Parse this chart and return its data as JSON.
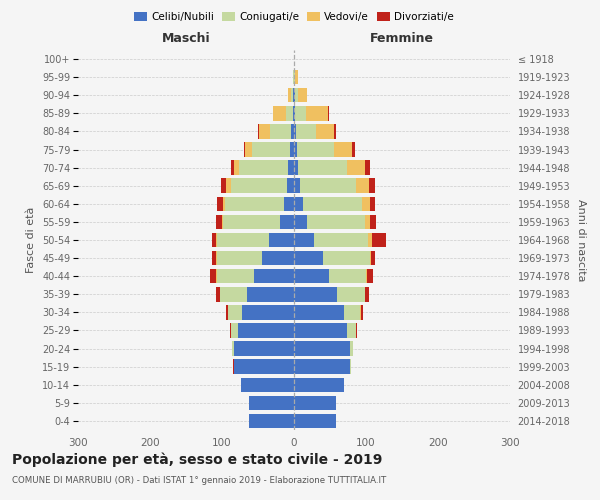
{
  "age_groups": [
    "0-4",
    "5-9",
    "10-14",
    "15-19",
    "20-24",
    "25-29",
    "30-34",
    "35-39",
    "40-44",
    "45-49",
    "50-54",
    "55-59",
    "60-64",
    "65-69",
    "70-74",
    "75-79",
    "80-84",
    "85-89",
    "90-94",
    "95-99",
    "100+"
  ],
  "birth_years": [
    "2014-2018",
    "2009-2013",
    "2004-2008",
    "1999-2003",
    "1994-1998",
    "1989-1993",
    "1984-1988",
    "1979-1983",
    "1974-1978",
    "1969-1973",
    "1964-1968",
    "1959-1963",
    "1954-1958",
    "1949-1953",
    "1944-1948",
    "1939-1943",
    "1934-1938",
    "1929-1933",
    "1924-1928",
    "1919-1923",
    "≤ 1918"
  ],
  "maschi": {
    "celibi": [
      63,
      62,
      73,
      83,
      83,
      78,
      72,
      65,
      55,
      45,
      35,
      20,
      14,
      10,
      8,
      5,
      4,
      2,
      1,
      0,
      0
    ],
    "coniugati": [
      0,
      0,
      0,
      1,
      3,
      10,
      20,
      38,
      52,
      62,
      72,
      78,
      82,
      78,
      68,
      53,
      30,
      9,
      3,
      1,
      0
    ],
    "vedovi": [
      0,
      0,
      0,
      0,
      0,
      0,
      0,
      0,
      1,
      1,
      1,
      2,
      3,
      6,
      8,
      10,
      14,
      18,
      5,
      1,
      0
    ],
    "divorziati": [
      0,
      0,
      0,
      1,
      0,
      1,
      3,
      5,
      8,
      6,
      6,
      8,
      8,
      7,
      4,
      2,
      2,
      0,
      0,
      0,
      0
    ]
  },
  "femmine": {
    "nubili": [
      58,
      58,
      70,
      78,
      78,
      74,
      70,
      60,
      48,
      40,
      28,
      18,
      12,
      8,
      6,
      4,
      3,
      2,
      1,
      0,
      0
    ],
    "coniugate": [
      0,
      0,
      0,
      1,
      4,
      12,
      22,
      38,
      52,
      65,
      75,
      80,
      82,
      78,
      68,
      52,
      28,
      15,
      5,
      2,
      0
    ],
    "vedove": [
      0,
      0,
      0,
      0,
      0,
      0,
      1,
      1,
      2,
      2,
      5,
      8,
      12,
      18,
      24,
      25,
      25,
      30,
      12,
      3,
      0
    ],
    "divorziate": [
      0,
      0,
      0,
      0,
      0,
      1,
      3,
      5,
      8,
      5,
      20,
      8,
      7,
      8,
      7,
      4,
      3,
      1,
      0,
      0,
      0
    ]
  },
  "colors": {
    "celibi": "#4472C4",
    "coniugati": "#c5d9a0",
    "vedovi": "#f0c060",
    "divorziati": "#c0221a"
  },
  "title": "Popolazione per età, sesso e stato civile - 2019",
  "subtitle": "COMUNE DI MARRUBIU (OR) - Dati ISTAT 1° gennaio 2019 - Elaborazione TUTTITALIA.IT",
  "xlabel_left": "Maschi",
  "xlabel_right": "Femmine",
  "ylabel_left": "Fasce di età",
  "ylabel_right": "Anni di nascita",
  "xlim": 300,
  "bg_color": "#f5f5f5",
  "grid_color": "#cccccc",
  "legend_labels": [
    "Celibi/Nubili",
    "Coniugati/e",
    "Vedovi/e",
    "Divorziati/e"
  ]
}
